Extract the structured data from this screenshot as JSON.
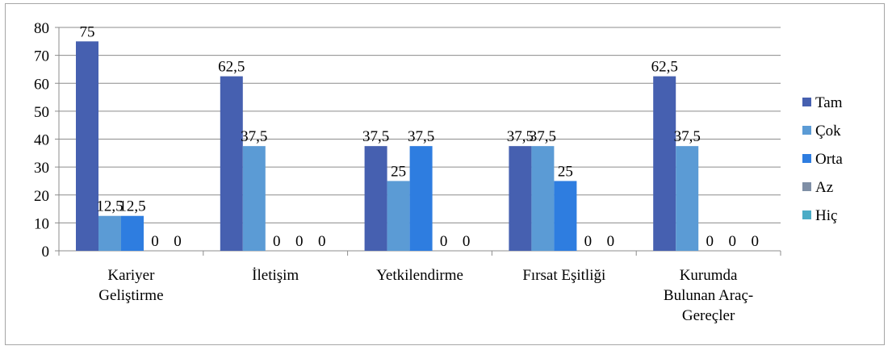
{
  "chart_data": {
    "type": "bar",
    "categories": [
      [
        "Kariyer",
        "Geliştirme"
      ],
      [
        "İletişim"
      ],
      [
        "Yetkilendirme"
      ],
      [
        "Fırsat Eşitliği"
      ],
      [
        "Kurumda",
        "Bulunan Araç-",
        "Gereçler"
      ]
    ],
    "series": [
      {
        "name": "Tam",
        "color": "#4660b0",
        "values": [
          75,
          62.5,
          37.5,
          37.5,
          62.5
        ],
        "labels": [
          "75",
          "62,5",
          "37,5",
          "37,5",
          "62,5"
        ]
      },
      {
        "name": "Çok",
        "color": "#5b9bd5",
        "values": [
          12.5,
          37.5,
          25,
          37.5,
          37.5
        ],
        "labels": [
          "12,5",
          "37,5",
          "25",
          "37,5",
          "37,5"
        ]
      },
      {
        "name": "Orta",
        "color": "#2e7de0",
        "values": [
          12.5,
          0,
          37.5,
          25,
          0
        ],
        "labels": [
          "12,5",
          "0",
          "37,5",
          "25",
          "0"
        ]
      },
      {
        "name": "Az",
        "color": "#7f8fa6",
        "values": [
          0,
          0,
          0,
          0,
          0
        ],
        "labels": [
          "0",
          "0",
          "0",
          "0",
          "0"
        ]
      },
      {
        "name": "Hiç",
        "color": "#4bacc6",
        "values": [
          0,
          0,
          0,
          0,
          0
        ],
        "labels": [
          "0",
          "0",
          "0",
          "0",
          "0"
        ]
      }
    ],
    "ylim": [
      0,
      80
    ],
    "yticks": [
      0,
      10,
      20,
      30,
      40,
      50,
      60,
      70,
      80
    ],
    "grid": true,
    "legend": "right",
    "title": "",
    "xlabel": "",
    "ylabel": ""
  }
}
